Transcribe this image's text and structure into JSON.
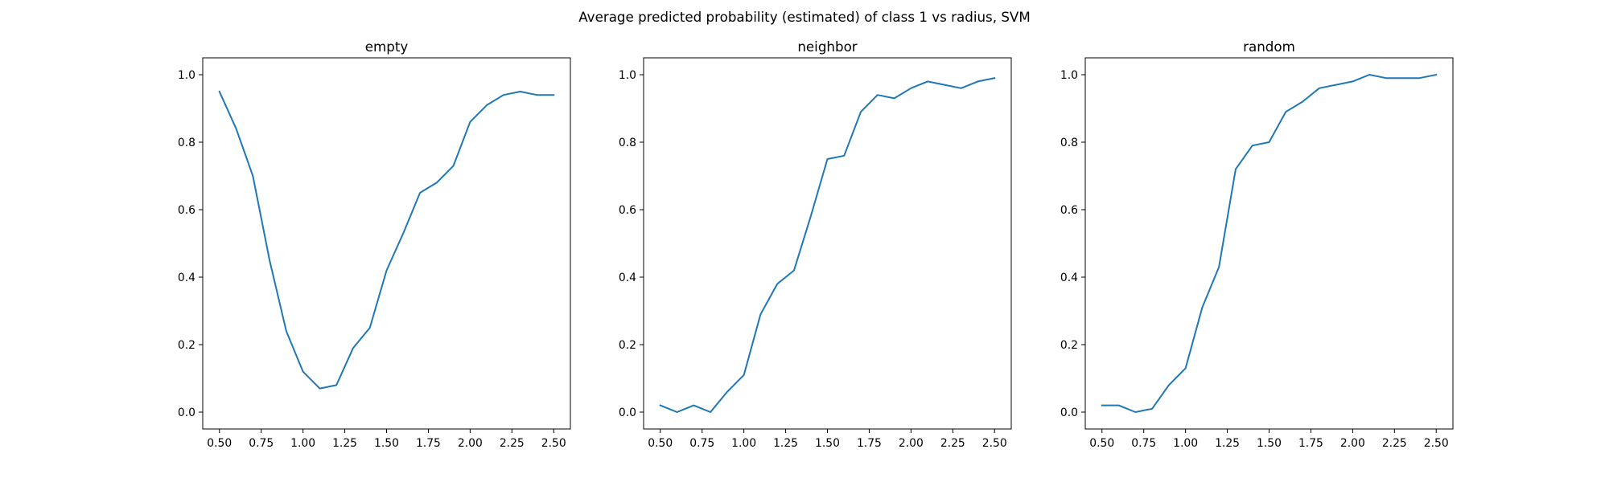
{
  "figure_title": "Average predicted probability (estimated) of class 1 vs radius, SVM",
  "line_color": "#1f77b4",
  "chart_data": [
    {
      "type": "line",
      "title": "empty",
      "xlabel": "",
      "ylabel": "",
      "xlim": [
        0.4,
        2.6
      ],
      "ylim": [
        -0.05,
        1.05
      ],
      "xticks": [
        0.5,
        0.75,
        1.0,
        1.25,
        1.5,
        1.75,
        2.0,
        2.25,
        2.5
      ],
      "xtick_labels": [
        "0.50",
        "0.75",
        "1.00",
        "1.25",
        "1.50",
        "1.75",
        "2.00",
        "2.25",
        "2.50"
      ],
      "yticks": [
        0.0,
        0.2,
        0.4,
        0.6,
        0.8,
        1.0
      ],
      "ytick_labels": [
        "0.0",
        "0.2",
        "0.4",
        "0.6",
        "0.8",
        "1.0"
      ],
      "x": [
        0.5,
        0.6,
        0.7,
        0.8,
        0.9,
        1.0,
        1.1,
        1.2,
        1.3,
        1.4,
        1.5,
        1.6,
        1.7,
        1.8,
        1.9,
        2.0,
        2.1,
        2.2,
        2.3,
        2.4,
        2.5
      ],
      "series": [
        {
          "values": [
            0.95,
            0.84,
            0.7,
            0.45,
            0.24,
            0.12,
            0.07,
            0.08,
            0.19,
            0.25,
            0.42,
            0.53,
            0.65,
            0.68,
            0.73,
            0.86,
            0.91,
            0.94,
            0.95,
            0.94,
            0.94
          ]
        }
      ]
    },
    {
      "type": "line",
      "title": "neighbor",
      "xlabel": "",
      "ylabel": "",
      "xlim": [
        0.4,
        2.6
      ],
      "ylim": [
        -0.05,
        1.05
      ],
      "xticks": [
        0.5,
        0.75,
        1.0,
        1.25,
        1.5,
        1.75,
        2.0,
        2.25,
        2.5
      ],
      "xtick_labels": [
        "0.50",
        "0.75",
        "1.00",
        "1.25",
        "1.50",
        "1.75",
        "2.00",
        "2.25",
        "2.50"
      ],
      "yticks": [
        0.0,
        0.2,
        0.4,
        0.6,
        0.8,
        1.0
      ],
      "ytick_labels": [
        "0.0",
        "0.2",
        "0.4",
        "0.6",
        "0.8",
        "1.0"
      ],
      "x": [
        0.5,
        0.6,
        0.7,
        0.8,
        0.9,
        1.0,
        1.1,
        1.2,
        1.3,
        1.4,
        1.5,
        1.6,
        1.7,
        1.8,
        1.9,
        2.0,
        2.1,
        2.2,
        2.3,
        2.4,
        2.5
      ],
      "series": [
        {
          "values": [
            0.02,
            0.0,
            0.02,
            0.0,
            0.06,
            0.11,
            0.29,
            0.38,
            0.42,
            0.58,
            0.75,
            0.76,
            0.89,
            0.94,
            0.93,
            0.96,
            0.98,
            0.97,
            0.96,
            0.98,
            0.99
          ]
        }
      ]
    },
    {
      "type": "line",
      "title": "random",
      "xlabel": "",
      "ylabel": "",
      "xlim": [
        0.4,
        2.6
      ],
      "ylim": [
        -0.05,
        1.05
      ],
      "xticks": [
        0.5,
        0.75,
        1.0,
        1.25,
        1.5,
        1.75,
        2.0,
        2.25,
        2.5
      ],
      "xtick_labels": [
        "0.50",
        "0.75",
        "1.00",
        "1.25",
        "1.50",
        "1.75",
        "2.00",
        "2.25",
        "2.50"
      ],
      "yticks": [
        0.0,
        0.2,
        0.4,
        0.6,
        0.8,
        1.0
      ],
      "ytick_labels": [
        "0.0",
        "0.2",
        "0.4",
        "0.6",
        "0.8",
        "1.0"
      ],
      "x": [
        0.5,
        0.6,
        0.7,
        0.8,
        0.9,
        1.0,
        1.1,
        1.2,
        1.3,
        1.4,
        1.5,
        1.6,
        1.7,
        1.8,
        1.9,
        2.0,
        2.1,
        2.2,
        2.3,
        2.4,
        2.5
      ],
      "series": [
        {
          "values": [
            0.02,
            0.02,
            0.0,
            0.01,
            0.08,
            0.13,
            0.31,
            0.43,
            0.72,
            0.79,
            0.8,
            0.89,
            0.92,
            0.96,
            0.97,
            0.98,
            1.0,
            0.99,
            0.99,
            0.99,
            1.0
          ]
        }
      ]
    }
  ]
}
